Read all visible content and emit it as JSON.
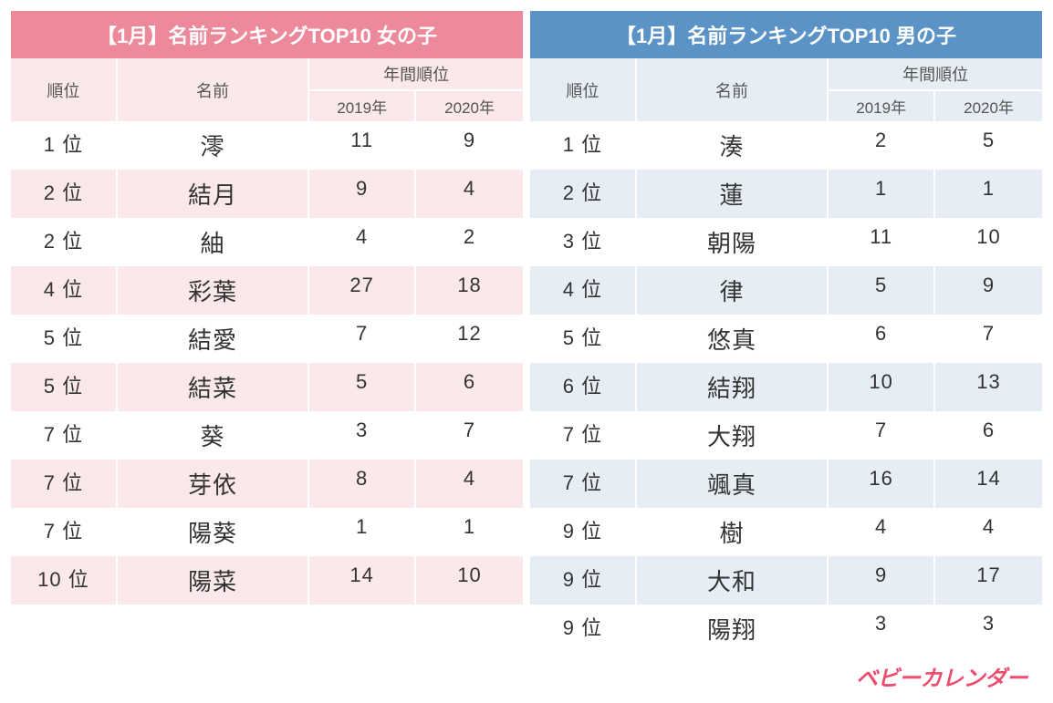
{
  "girls": {
    "title": "【1月】名前ランキングTOP10 女の子",
    "title_bg": "#ec8a9c",
    "header_bg": "#fbe8ea",
    "row_even_bg": "#ffffff",
    "row_odd_bg": "#fbe8ea",
    "border_color": "#ffffff",
    "columns": {
      "rank": "順位",
      "name": "名前",
      "yearly": "年間順位",
      "y2019": "2019年",
      "y2020": "2020年"
    },
    "rows": [
      {
        "rank": "1 位",
        "name": "澪",
        "y2019": "11",
        "y2020": "9"
      },
      {
        "rank": "2 位",
        "name": "結月",
        "y2019": "9",
        "y2020": "4"
      },
      {
        "rank": "2 位",
        "name": "紬",
        "y2019": "4",
        "y2020": "2"
      },
      {
        "rank": "4 位",
        "name": "彩葉",
        "y2019": "27",
        "y2020": "18"
      },
      {
        "rank": "5 位",
        "name": "結愛",
        "y2019": "7",
        "y2020": "12"
      },
      {
        "rank": "5 位",
        "name": "結菜",
        "y2019": "5",
        "y2020": "6"
      },
      {
        "rank": "7 位",
        "name": "葵",
        "y2019": "3",
        "y2020": "7"
      },
      {
        "rank": "7 位",
        "name": "芽依",
        "y2019": "8",
        "y2020": "4"
      },
      {
        "rank": "7 位",
        "name": "陽葵",
        "y2019": "1",
        "y2020": "1"
      },
      {
        "rank": "10 位",
        "name": "陽菜",
        "y2019": "14",
        "y2020": "10"
      }
    ]
  },
  "boys": {
    "title": "【1月】名前ランキングTOP10 男の子",
    "title_bg": "#5b93c7",
    "header_bg": "#e6edf5",
    "row_even_bg": "#ffffff",
    "row_odd_bg": "#e6edf5",
    "border_color": "#ffffff",
    "columns": {
      "rank": "順位",
      "name": "名前",
      "yearly": "年間順位",
      "y2019": "2019年",
      "y2020": "2020年"
    },
    "rows": [
      {
        "rank": "1 位",
        "name": "湊",
        "y2019": "2",
        "y2020": "5"
      },
      {
        "rank": "2 位",
        "name": "蓮",
        "y2019": "1",
        "y2020": "1"
      },
      {
        "rank": "3 位",
        "name": "朝陽",
        "y2019": "11",
        "y2020": "10"
      },
      {
        "rank": "4 位",
        "name": "律",
        "y2019": "5",
        "y2020": "9"
      },
      {
        "rank": "5 位",
        "name": "悠真",
        "y2019": "6",
        "y2020": "7"
      },
      {
        "rank": "6 位",
        "name": "結翔",
        "y2019": "10",
        "y2020": "13"
      },
      {
        "rank": "7 位",
        "name": "大翔",
        "y2019": "7",
        "y2020": "6"
      },
      {
        "rank": "7 位",
        "name": "颯真",
        "y2019": "16",
        "y2020": "14"
      },
      {
        "rank": "9 位",
        "name": "樹",
        "y2019": "4",
        "y2020": "4"
      },
      {
        "rank": "9 位",
        "name": "大和",
        "y2019": "9",
        "y2020": "17"
      },
      {
        "rank": "9 位",
        "name": "陽翔",
        "y2019": "3",
        "y2020": "3"
      }
    ]
  },
  "footer": {
    "logo_text": "ベビーカレンダー",
    "logo_color": "#ec4d6f"
  }
}
